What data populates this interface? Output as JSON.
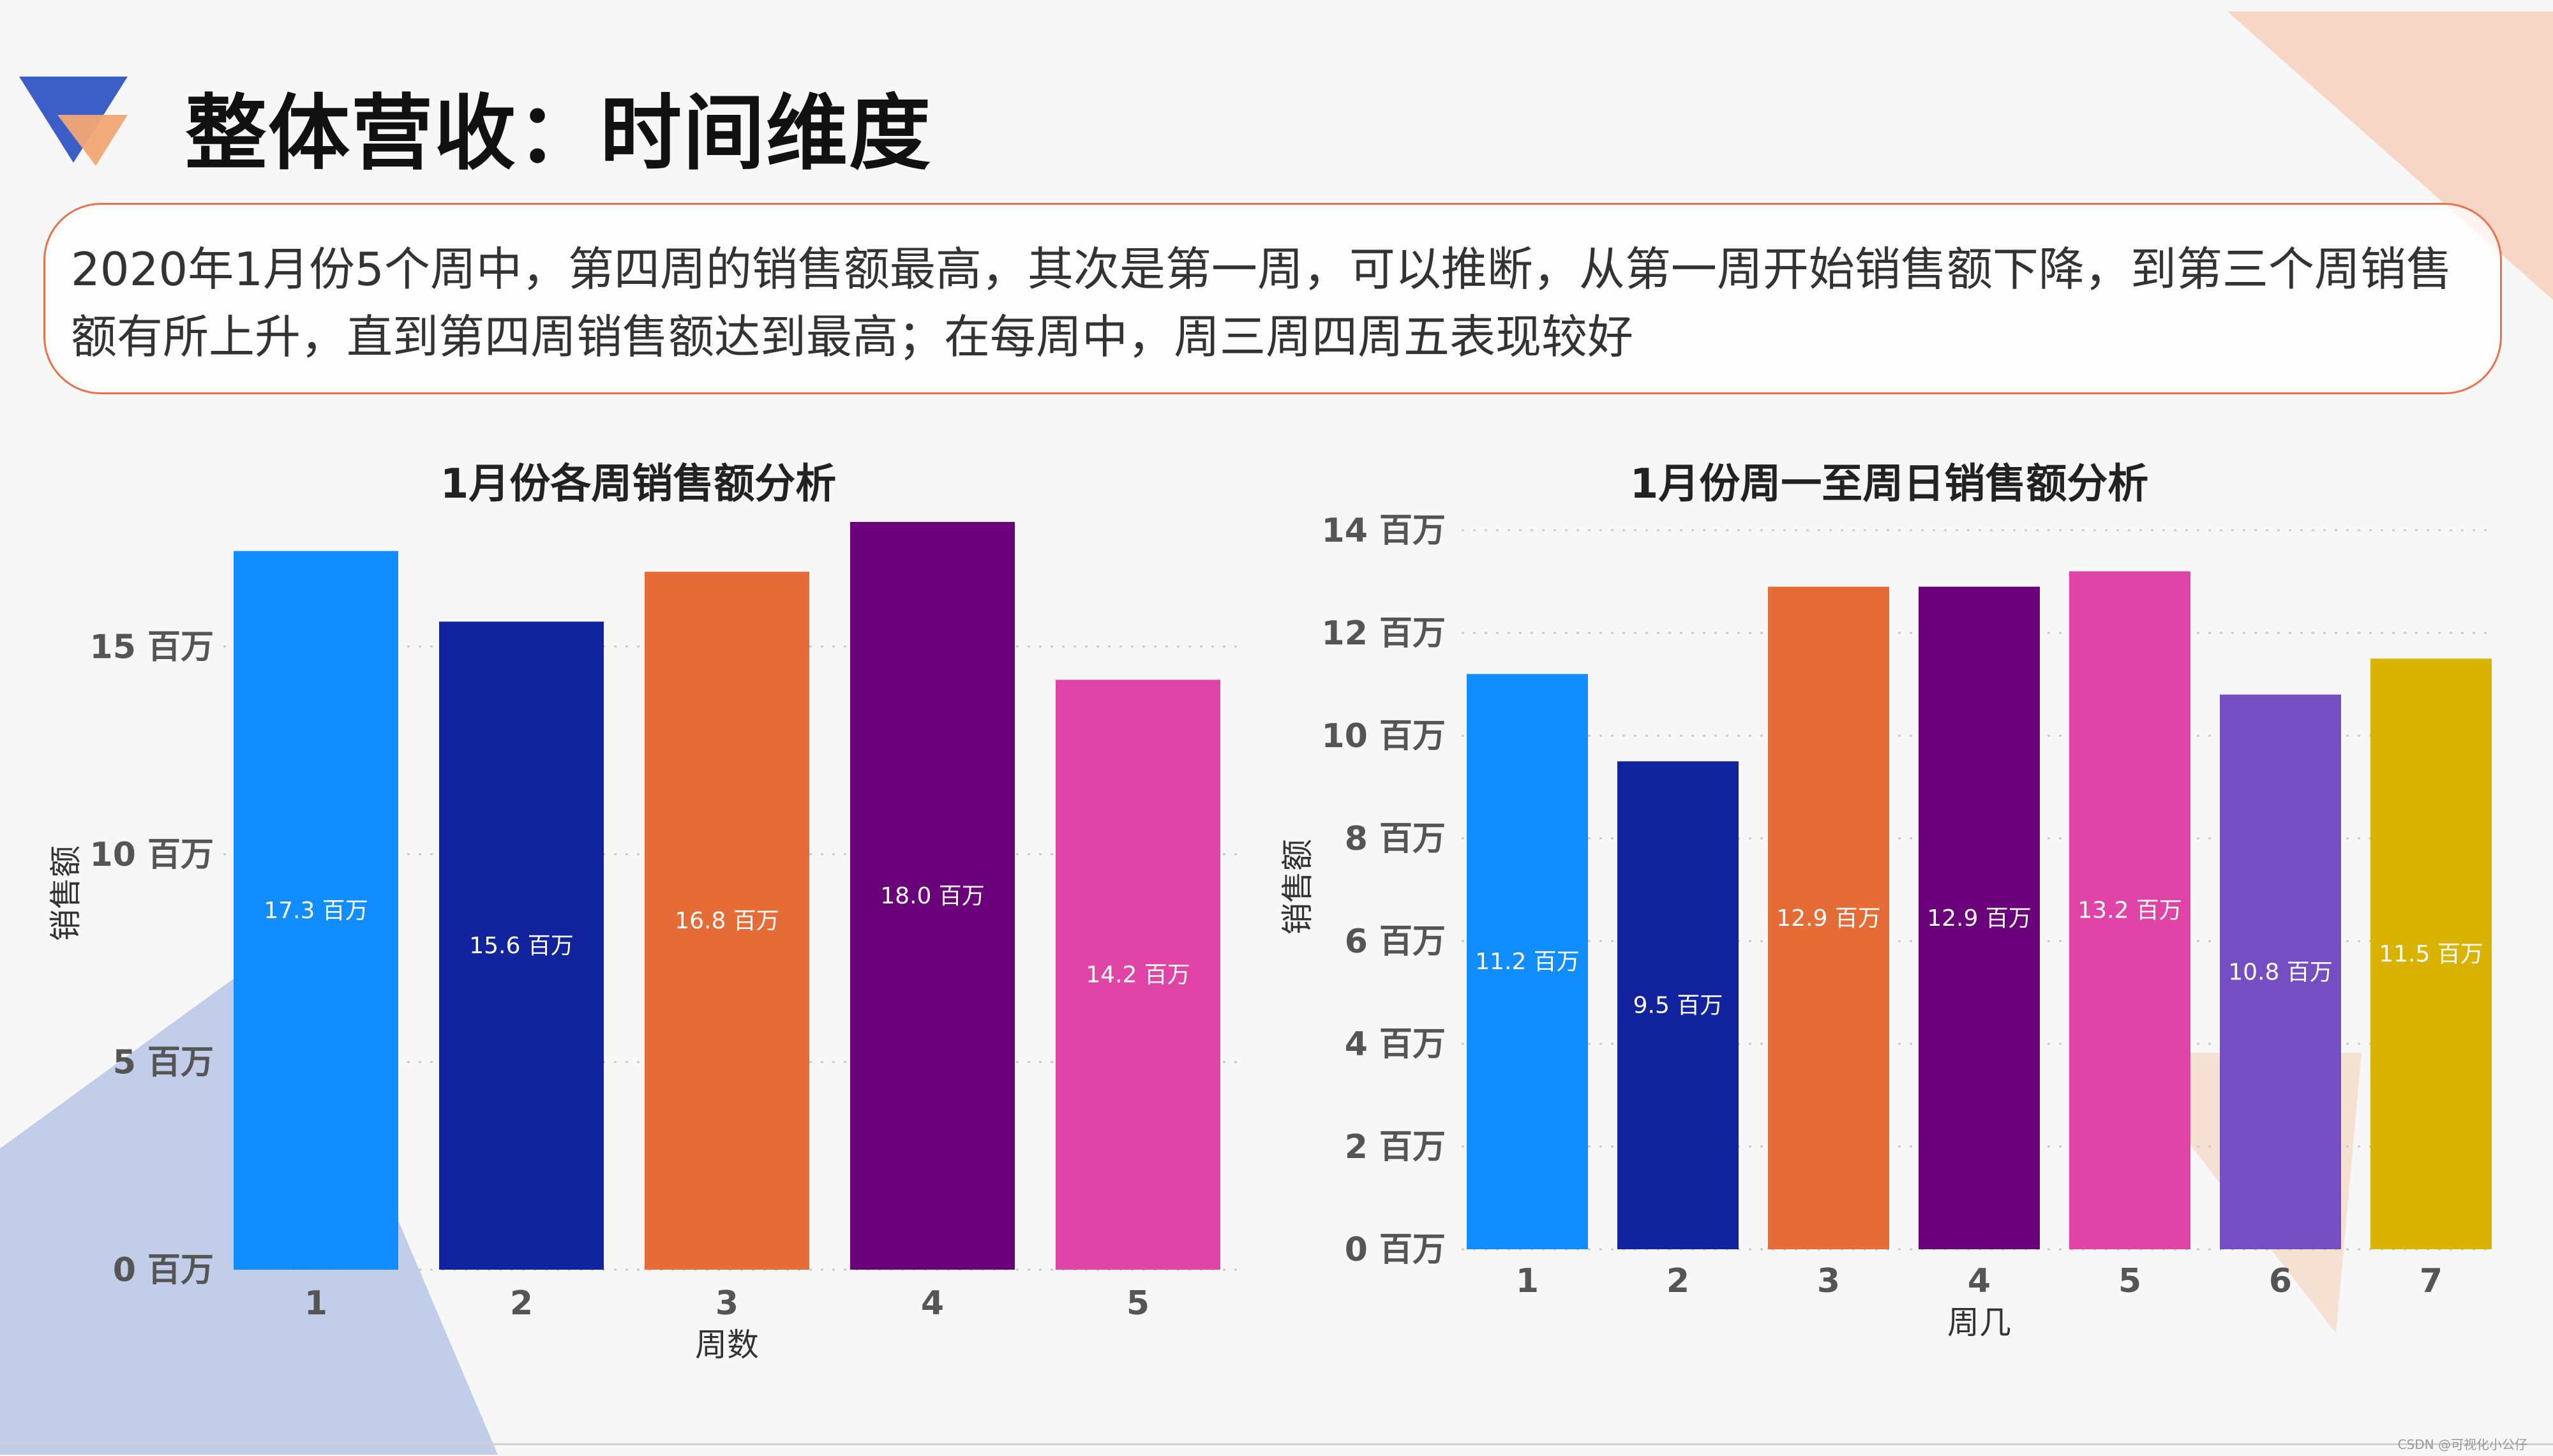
{
  "page": {
    "title": "整体营收：时间维度",
    "summary": "2020年1月份5个周中，第四周的销售额最高，其次是第一周，可以推断，从第一周开始销售额下降，到第三个周销售额有所上升，直到第四周销售额达到最高；在每周中，周三周四周五表现较好",
    "watermark": "CSDN @可视化小公仔"
  },
  "colors": {
    "accent": "#e8734a",
    "logo_blue": "#3b5fc7",
    "logo_orange": "#f2a774"
  },
  "chart_data": [
    {
      "type": "bar",
      "title": "1月份各周销售额分析",
      "xlabel": "周数",
      "ylabel": "销售额",
      "categories": [
        "1",
        "2",
        "3",
        "4",
        "5"
      ],
      "values": [
        17.3,
        15.6,
        16.8,
        18.0,
        14.2
      ],
      "data_labels": [
        "17.3 百万",
        "15.6 百万",
        "16.8 百万",
        "18.0 百万",
        "14.2 百万"
      ],
      "colors": [
        "#118dff",
        "#12239e",
        "#e66c37",
        "#6b007b",
        "#e044a7"
      ],
      "ylim": [
        0,
        18
      ],
      "yticks": [
        0,
        5,
        10,
        15
      ],
      "ytick_labels": [
        "0 百万",
        "5 百万",
        "10 百万",
        "15 百万"
      ],
      "grid": true
    },
    {
      "type": "bar",
      "title": "1月份周一至周日销售额分析",
      "xlabel": "周几",
      "ylabel": "销售额",
      "categories": [
        "1",
        "2",
        "3",
        "4",
        "5",
        "6",
        "7"
      ],
      "values": [
        11.2,
        9.5,
        12.9,
        12.9,
        13.2,
        10.8,
        11.5
      ],
      "data_labels": [
        "11.2 百万",
        "9.5 百万",
        "12.9 百万",
        "12.9 百万",
        "13.2 百万",
        "10.8 百万",
        "11.5 百万"
      ],
      "colors": [
        "#118dff",
        "#12239e",
        "#e66c37",
        "#6b007b",
        "#e044a7",
        "#744ec2",
        "#d9b300"
      ],
      "ylim": [
        0,
        14
      ],
      "yticks": [
        0,
        2,
        4,
        6,
        8,
        10,
        12,
        14
      ],
      "ytick_labels": [
        "0 百万",
        "2 百万",
        "4 百万",
        "6 百万",
        "8 百万",
        "10 百万",
        "12 百万",
        "14 百万"
      ],
      "grid": true
    }
  ]
}
